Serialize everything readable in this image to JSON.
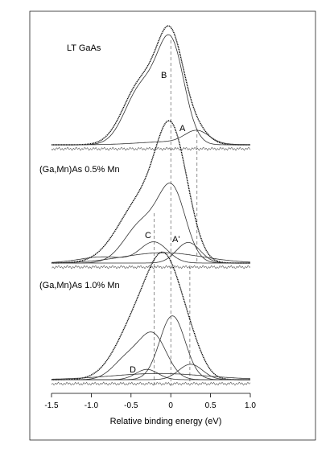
{
  "chart_data": {
    "type": "line",
    "xlabel": "Relative binding energy (eV)",
    "xlim": [
      -1.5,
      1.0
    ],
    "xticks": [
      -1.5,
      -1.0,
      -0.5,
      0,
      0.5,
      1.0
    ],
    "xtick_labels": [
      "-1.5",
      "-1.0",
      "-0.5",
      "0",
      "0.5",
      "1.0"
    ],
    "reference_lines_x": [
      0.0,
      0.33,
      -0.21,
      0.24
    ],
    "panels": [
      {
        "label": "LT GaAs",
        "series": [
          {
            "role": "data",
            "peaks": [
              {
                "center": 0.0,
                "amplitude": 1.0,
                "width": 0.17
              },
              {
                "center": -0.38,
                "amplitude": 0.58,
                "width": 0.22
              },
              {
                "center": 0.33,
                "amplitude": 0.12,
                "width": 0.15
              }
            ]
          },
          {
            "role": "component",
            "label": "B",
            "peaks": [
              {
                "center": 0.0,
                "amplitude": 0.97,
                "width": 0.17
              },
              {
                "center": -0.38,
                "amplitude": 0.53,
                "width": 0.2
              }
            ]
          },
          {
            "role": "component",
            "label": "A",
            "peaks": [
              {
                "center": 0.33,
                "amplitude": 0.12,
                "width": 0.15
              },
              {
                "center": 0.0,
                "amplitude": 0.03,
                "width": 0.4
              }
            ]
          },
          {
            "role": "residual"
          }
        ]
      },
      {
        "label": "(Ga,Mn)As  0.5% Mn",
        "series": [
          {
            "role": "data",
            "peaks": [
              {
                "center": 0.0,
                "amplitude": 1.0,
                "width": 0.18
              },
              {
                "center": -0.35,
                "amplitude": 0.62,
                "width": 0.3
              },
              {
                "center": 0.22,
                "amplitude": 0.18,
                "width": 0.15
              }
            ]
          },
          {
            "role": "component",
            "peaks": [
              {
                "center": 0.02,
                "amplitude": 0.68,
                "width": 0.17
              },
              {
                "center": -0.36,
                "amplitude": 0.38,
                "width": 0.22
              }
            ]
          },
          {
            "role": "component",
            "label": "C",
            "peaks": [
              {
                "center": -0.21,
                "amplitude": 0.2,
                "width": 0.17
              },
              {
                "center": -0.85,
                "amplitude": 0.06,
                "width": 0.3
              }
            ]
          },
          {
            "role": "component",
            "label": "A'",
            "peaks": [
              {
                "center": 0.22,
                "amplitude": 0.2,
                "width": 0.15
              }
            ]
          },
          {
            "role": "component",
            "peaks": [
              {
                "center": -0.1,
                "amplitude": 0.1,
                "width": 0.5
              }
            ]
          },
          {
            "role": "residual"
          }
        ]
      },
      {
        "label": "(Ga,Mn)As  1.0% Mn",
        "series": [
          {
            "role": "data",
            "peaks": [
              {
                "center": -0.05,
                "amplitude": 1.0,
                "width": 0.22
              },
              {
                "center": -0.42,
                "amplitude": 0.55,
                "width": 0.26
              },
              {
                "center": 0.28,
                "amplitude": 0.15,
                "width": 0.15
              }
            ]
          },
          {
            "role": "component",
            "peaks": [
              {
                "center": 0.02,
                "amplitude": 0.62,
                "width": 0.16
              }
            ]
          },
          {
            "role": "component",
            "peaks": [
              {
                "center": -0.22,
                "amplitude": 0.42,
                "width": 0.17
              },
              {
                "center": -0.55,
                "amplitude": 0.2,
                "width": 0.18
              }
            ]
          },
          {
            "role": "component",
            "label": "D",
            "peaks": [
              {
                "center": -0.3,
                "amplitude": 0.1,
                "width": 0.14
              }
            ]
          },
          {
            "role": "component",
            "peaks": [
              {
                "center": 0.25,
                "amplitude": 0.15,
                "width": 0.15
              }
            ]
          },
          {
            "role": "component",
            "peaks": [
              {
                "center": -0.15,
                "amplitude": 0.06,
                "width": 0.6
              }
            ]
          },
          {
            "role": "residual"
          }
        ]
      }
    ]
  }
}
